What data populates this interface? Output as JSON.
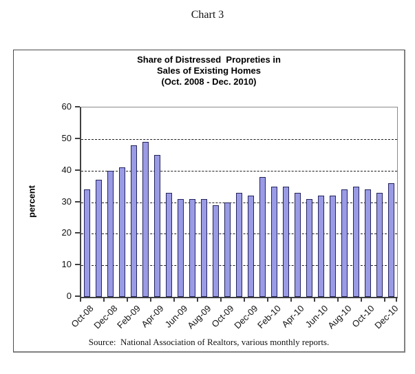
{
  "page_title": "Chart 3",
  "chart": {
    "title_line1": "Share of Distressed  Propreties in",
    "title_line2": "Sales of Existing Homes",
    "title_line3": "(Oct. 2008 - Dec. 2010)",
    "ylabel": "percent",
    "source": "Source:  National Association of Realtors, various monthly reports."
  },
  "chart_data": {
    "type": "bar",
    "title": "Share of Distressed Propreties in Sales of Existing Homes (Oct. 2008 - Dec. 2010)",
    "xlabel": "",
    "ylabel": "percent",
    "ylim": [
      0,
      60
    ],
    "yticks": [
      0,
      10,
      20,
      30,
      40,
      50,
      60
    ],
    "grid": "horizontal dashed lines at 10 through 50",
    "legend": "none",
    "categories": [
      "Oct-08",
      "Nov-08",
      "Dec-08",
      "Jan-09",
      "Feb-09",
      "Mar-09",
      "Apr-09",
      "May-09",
      "Jun-09",
      "Jul-09",
      "Aug-09",
      "Sep-09",
      "Oct-09",
      "Nov-09",
      "Dec-09",
      "Jan-10",
      "Feb-10",
      "Mar-10",
      "Apr-10",
      "May-10",
      "Jun-10",
      "Jul-10",
      "Aug-10",
      "Sep-10",
      "Oct-10",
      "Nov-10",
      "Dec-10"
    ],
    "values": [
      34,
      37,
      40,
      41,
      48,
      49,
      45,
      33,
      31,
      31,
      31,
      29,
      30,
      33,
      32,
      38,
      35,
      35,
      33,
      31,
      32,
      32,
      34,
      35,
      34,
      33,
      36
    ],
    "x_tick_labels": [
      "Oct-08",
      "Dec-08",
      "Feb-09",
      "Apr-09",
      "Jun-09",
      "Aug-09",
      "Oct-09",
      "Dec-09",
      "Feb-10",
      "Apr-10",
      "Jun-10",
      "Aug-10",
      "Oct-10",
      "Dec-10"
    ],
    "bar_fill": "#9a9be4",
    "bar_border": "#23235c"
  }
}
